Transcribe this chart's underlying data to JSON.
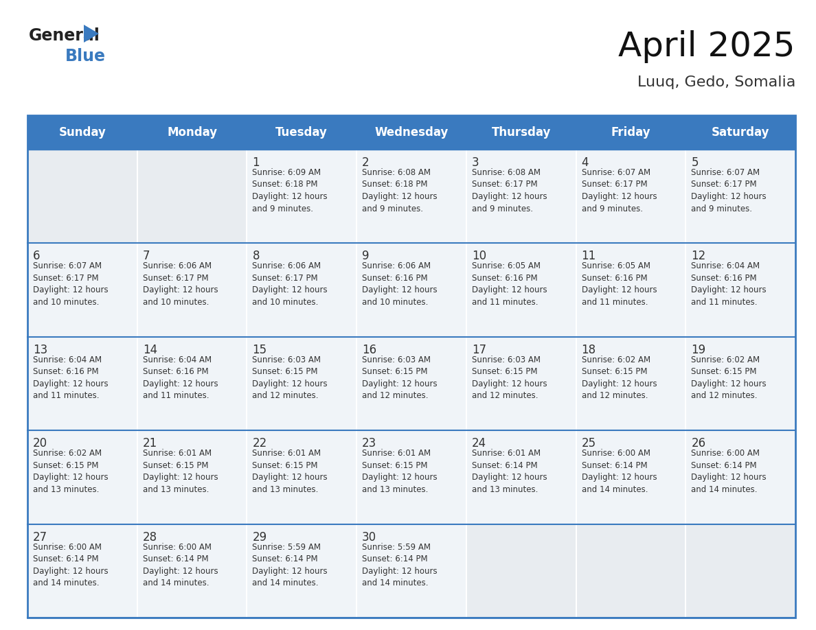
{
  "title": "April 2025",
  "subtitle": "Luuq, Gedo, Somalia",
  "header_bg": "#3a7abf",
  "header_text": "#ffffff",
  "cell_bg_filled": "#f0f4f8",
  "cell_bg_empty": "#e8edf2",
  "border_color": "#3a7abf",
  "row_line_color": "#3a7abf",
  "text_color": "#333333",
  "days_of_week": [
    "Sunday",
    "Monday",
    "Tuesday",
    "Wednesday",
    "Thursday",
    "Friday",
    "Saturday"
  ],
  "weeks": [
    [
      {
        "day": null,
        "info": null
      },
      {
        "day": null,
        "info": null
      },
      {
        "day": "1",
        "info": "Sunrise: 6:09 AM\nSunset: 6:18 PM\nDaylight: 12 hours\nand 9 minutes."
      },
      {
        "day": "2",
        "info": "Sunrise: 6:08 AM\nSunset: 6:18 PM\nDaylight: 12 hours\nand 9 minutes."
      },
      {
        "day": "3",
        "info": "Sunrise: 6:08 AM\nSunset: 6:17 PM\nDaylight: 12 hours\nand 9 minutes."
      },
      {
        "day": "4",
        "info": "Sunrise: 6:07 AM\nSunset: 6:17 PM\nDaylight: 12 hours\nand 9 minutes."
      },
      {
        "day": "5",
        "info": "Sunrise: 6:07 AM\nSunset: 6:17 PM\nDaylight: 12 hours\nand 9 minutes."
      }
    ],
    [
      {
        "day": "6",
        "info": "Sunrise: 6:07 AM\nSunset: 6:17 PM\nDaylight: 12 hours\nand 10 minutes."
      },
      {
        "day": "7",
        "info": "Sunrise: 6:06 AM\nSunset: 6:17 PM\nDaylight: 12 hours\nand 10 minutes."
      },
      {
        "day": "8",
        "info": "Sunrise: 6:06 AM\nSunset: 6:17 PM\nDaylight: 12 hours\nand 10 minutes."
      },
      {
        "day": "9",
        "info": "Sunrise: 6:06 AM\nSunset: 6:16 PM\nDaylight: 12 hours\nand 10 minutes."
      },
      {
        "day": "10",
        "info": "Sunrise: 6:05 AM\nSunset: 6:16 PM\nDaylight: 12 hours\nand 11 minutes."
      },
      {
        "day": "11",
        "info": "Sunrise: 6:05 AM\nSunset: 6:16 PM\nDaylight: 12 hours\nand 11 minutes."
      },
      {
        "day": "12",
        "info": "Sunrise: 6:04 AM\nSunset: 6:16 PM\nDaylight: 12 hours\nand 11 minutes."
      }
    ],
    [
      {
        "day": "13",
        "info": "Sunrise: 6:04 AM\nSunset: 6:16 PM\nDaylight: 12 hours\nand 11 minutes."
      },
      {
        "day": "14",
        "info": "Sunrise: 6:04 AM\nSunset: 6:16 PM\nDaylight: 12 hours\nand 11 minutes."
      },
      {
        "day": "15",
        "info": "Sunrise: 6:03 AM\nSunset: 6:15 PM\nDaylight: 12 hours\nand 12 minutes."
      },
      {
        "day": "16",
        "info": "Sunrise: 6:03 AM\nSunset: 6:15 PM\nDaylight: 12 hours\nand 12 minutes."
      },
      {
        "day": "17",
        "info": "Sunrise: 6:03 AM\nSunset: 6:15 PM\nDaylight: 12 hours\nand 12 minutes."
      },
      {
        "day": "18",
        "info": "Sunrise: 6:02 AM\nSunset: 6:15 PM\nDaylight: 12 hours\nand 12 minutes."
      },
      {
        "day": "19",
        "info": "Sunrise: 6:02 AM\nSunset: 6:15 PM\nDaylight: 12 hours\nand 12 minutes."
      }
    ],
    [
      {
        "day": "20",
        "info": "Sunrise: 6:02 AM\nSunset: 6:15 PM\nDaylight: 12 hours\nand 13 minutes."
      },
      {
        "day": "21",
        "info": "Sunrise: 6:01 AM\nSunset: 6:15 PM\nDaylight: 12 hours\nand 13 minutes."
      },
      {
        "day": "22",
        "info": "Sunrise: 6:01 AM\nSunset: 6:15 PM\nDaylight: 12 hours\nand 13 minutes."
      },
      {
        "day": "23",
        "info": "Sunrise: 6:01 AM\nSunset: 6:15 PM\nDaylight: 12 hours\nand 13 minutes."
      },
      {
        "day": "24",
        "info": "Sunrise: 6:01 AM\nSunset: 6:14 PM\nDaylight: 12 hours\nand 13 minutes."
      },
      {
        "day": "25",
        "info": "Sunrise: 6:00 AM\nSunset: 6:14 PM\nDaylight: 12 hours\nand 14 minutes."
      },
      {
        "day": "26",
        "info": "Sunrise: 6:00 AM\nSunset: 6:14 PM\nDaylight: 12 hours\nand 14 minutes."
      }
    ],
    [
      {
        "day": "27",
        "info": "Sunrise: 6:00 AM\nSunset: 6:14 PM\nDaylight: 12 hours\nand 14 minutes."
      },
      {
        "day": "28",
        "info": "Sunrise: 6:00 AM\nSunset: 6:14 PM\nDaylight: 12 hours\nand 14 minutes."
      },
      {
        "day": "29",
        "info": "Sunrise: 5:59 AM\nSunset: 6:14 PM\nDaylight: 12 hours\nand 14 minutes."
      },
      {
        "day": "30",
        "info": "Sunrise: 5:59 AM\nSunset: 6:14 PM\nDaylight: 12 hours\nand 14 minutes."
      },
      {
        "day": null,
        "info": null
      },
      {
        "day": null,
        "info": null
      },
      {
        "day": null,
        "info": null
      }
    ]
  ]
}
